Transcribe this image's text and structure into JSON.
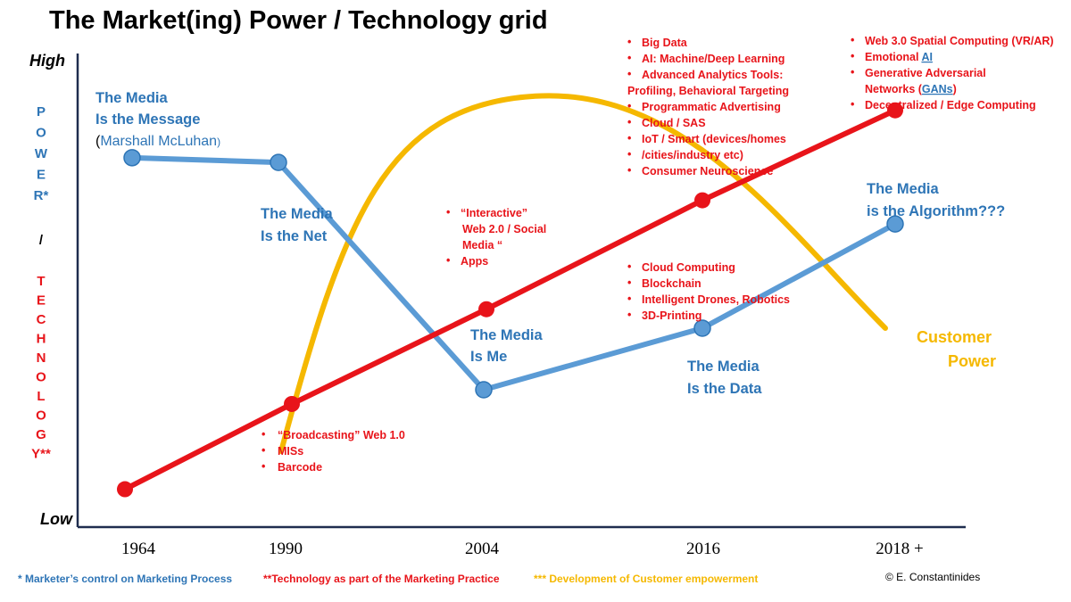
{
  "title": "The Market(ing) Power / Technology grid",
  "axis": {
    "high": "High",
    "low": "Low",
    "y_label_power": [
      "P",
      "O",
      "W",
      "E",
      "R*"
    ],
    "y_slash": "/",
    "y_label_tech": [
      "T",
      "E",
      "C",
      "H",
      "N",
      "O",
      "L",
      "O",
      "G",
      "Y**"
    ],
    "x_ticks": [
      "1964",
      "1990",
      "2004",
      "2016",
      "2018 +"
    ]
  },
  "chart_data": {
    "type": "line",
    "x_categories": [
      "1964",
      "1990",
      "2004",
      "2016",
      "2018 +"
    ],
    "y_range_words": [
      "Low",
      "High"
    ],
    "series": [
      {
        "name": "Technology",
        "color": "#e8141a",
        "values": [
          0.08,
          0.26,
          0.46,
          0.69,
          0.88
        ]
      },
      {
        "name": "Media",
        "color": "#2e75b6",
        "values": [
          0.78,
          0.77,
          0.29,
          0.42,
          0.64
        ]
      },
      {
        "name": "Customer Power",
        "color": "#f5b800",
        "shape": "arc",
        "start": 0.16,
        "peak_x": "2007",
        "peak": 0.91,
        "end": 0.42
      }
    ]
  },
  "media_labels": {
    "message": [
      "The Media",
      "Is the Message"
    ],
    "mcluhan_paren_open": "(",
    "mcluhan_name": "Marshall McLuhan",
    "mcluhan_paren_close": ")",
    "net": [
      "The Media",
      "Is the Net"
    ],
    "me": [
      "The Media",
      "Is Me"
    ],
    "data": [
      "The Media",
      "Is the Data"
    ],
    "algorithm": [
      "The Media",
      "is the Algorithm???"
    ]
  },
  "customer_power": [
    "Customer",
    "Power"
  ],
  "notes": {
    "web1": [
      "“Broadcasting” Web 1.0",
      "MISs",
      "Barcode"
    ],
    "web2_bullet1": [
      "“Interactive”",
      "Web 2.0 / Social",
      "Media “"
    ],
    "web2_bullet2": "Apps",
    "mid2016": [
      "Cloud Computing",
      "Blockchain",
      "Intelligent Drones, Robotics",
      "3D-Printing"
    ],
    "top2016": {
      "b1": "Big Data",
      "b2": "AI: Machine/Deep Learning",
      "b3a": "Advanced Analytics Tools:",
      "b3b": "Profiling, Behavioral Targeting",
      "b4": "Programmatic Advertising",
      "b5": "Cloud / SAS",
      "b6a": "IoT / Smart (devices/homes",
      "b6b": "/cities/industry etc)",
      "b7": "Consumer Neuroscience"
    },
    "top2018": {
      "b1": "Web 3.0 Spatial Computing (VR/AR)",
      "b2_text": "Emotional ",
      "b2_link": "AI",
      "b3a": "Generative Adversarial",
      "b3b_text": "Networks (",
      "b3b_link": "GANs",
      "b3b_end": ")",
      "b4": "Decentralized / Edge Computing"
    },
    "bullet": "•"
  },
  "footer": {
    "power_note": "* Marketer’s control on Marketing Process",
    "tech_note": "**Technology as part of the Marketing Practice",
    "customer_note": "*** Development of Customer empowerment",
    "copyright": "© E. Constantinides"
  },
  "colors": {
    "red": "#e8141a",
    "blue": "#2e75b6",
    "gold": "#f5b800",
    "axis": "#1f2d4f"
  }
}
